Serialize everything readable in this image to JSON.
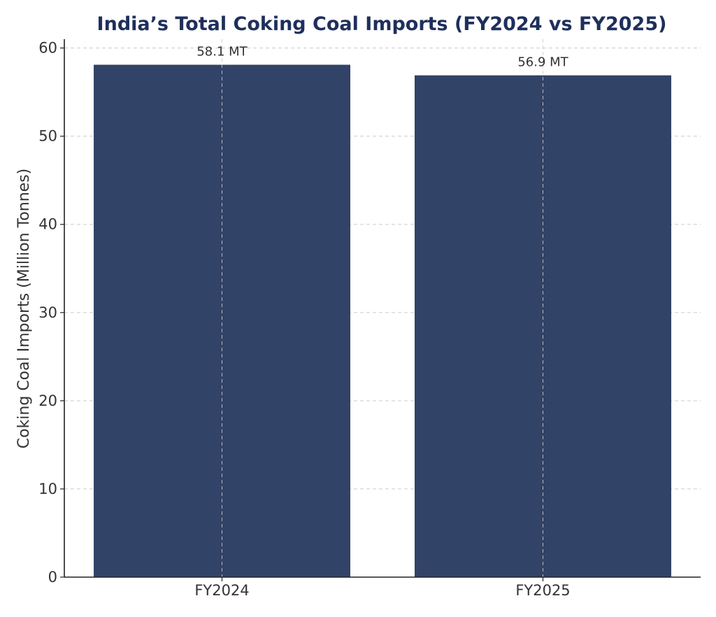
{
  "chart_data": {
    "type": "bar",
    "title": "India’s Total Coking Coal Imports (FY2024 vs FY2025)",
    "xlabel": "",
    "ylabel": "Coking Coal Imports (Million Tonnes)",
    "categories": [
      "FY2024",
      "FY2025"
    ],
    "values": [
      58.1,
      56.9
    ],
    "value_labels": [
      "58.1 MT",
      "56.9 MT"
    ],
    "ylim": [
      0,
      61
    ],
    "yticks": [
      0,
      10,
      20,
      30,
      40,
      50,
      60
    ],
    "grid": true,
    "legend": "none",
    "colors": {
      "bar": "#324368",
      "title": "#1f2f5c",
      "grid": "#cccccc",
      "axis": "#222222",
      "text": "#333333"
    }
  }
}
